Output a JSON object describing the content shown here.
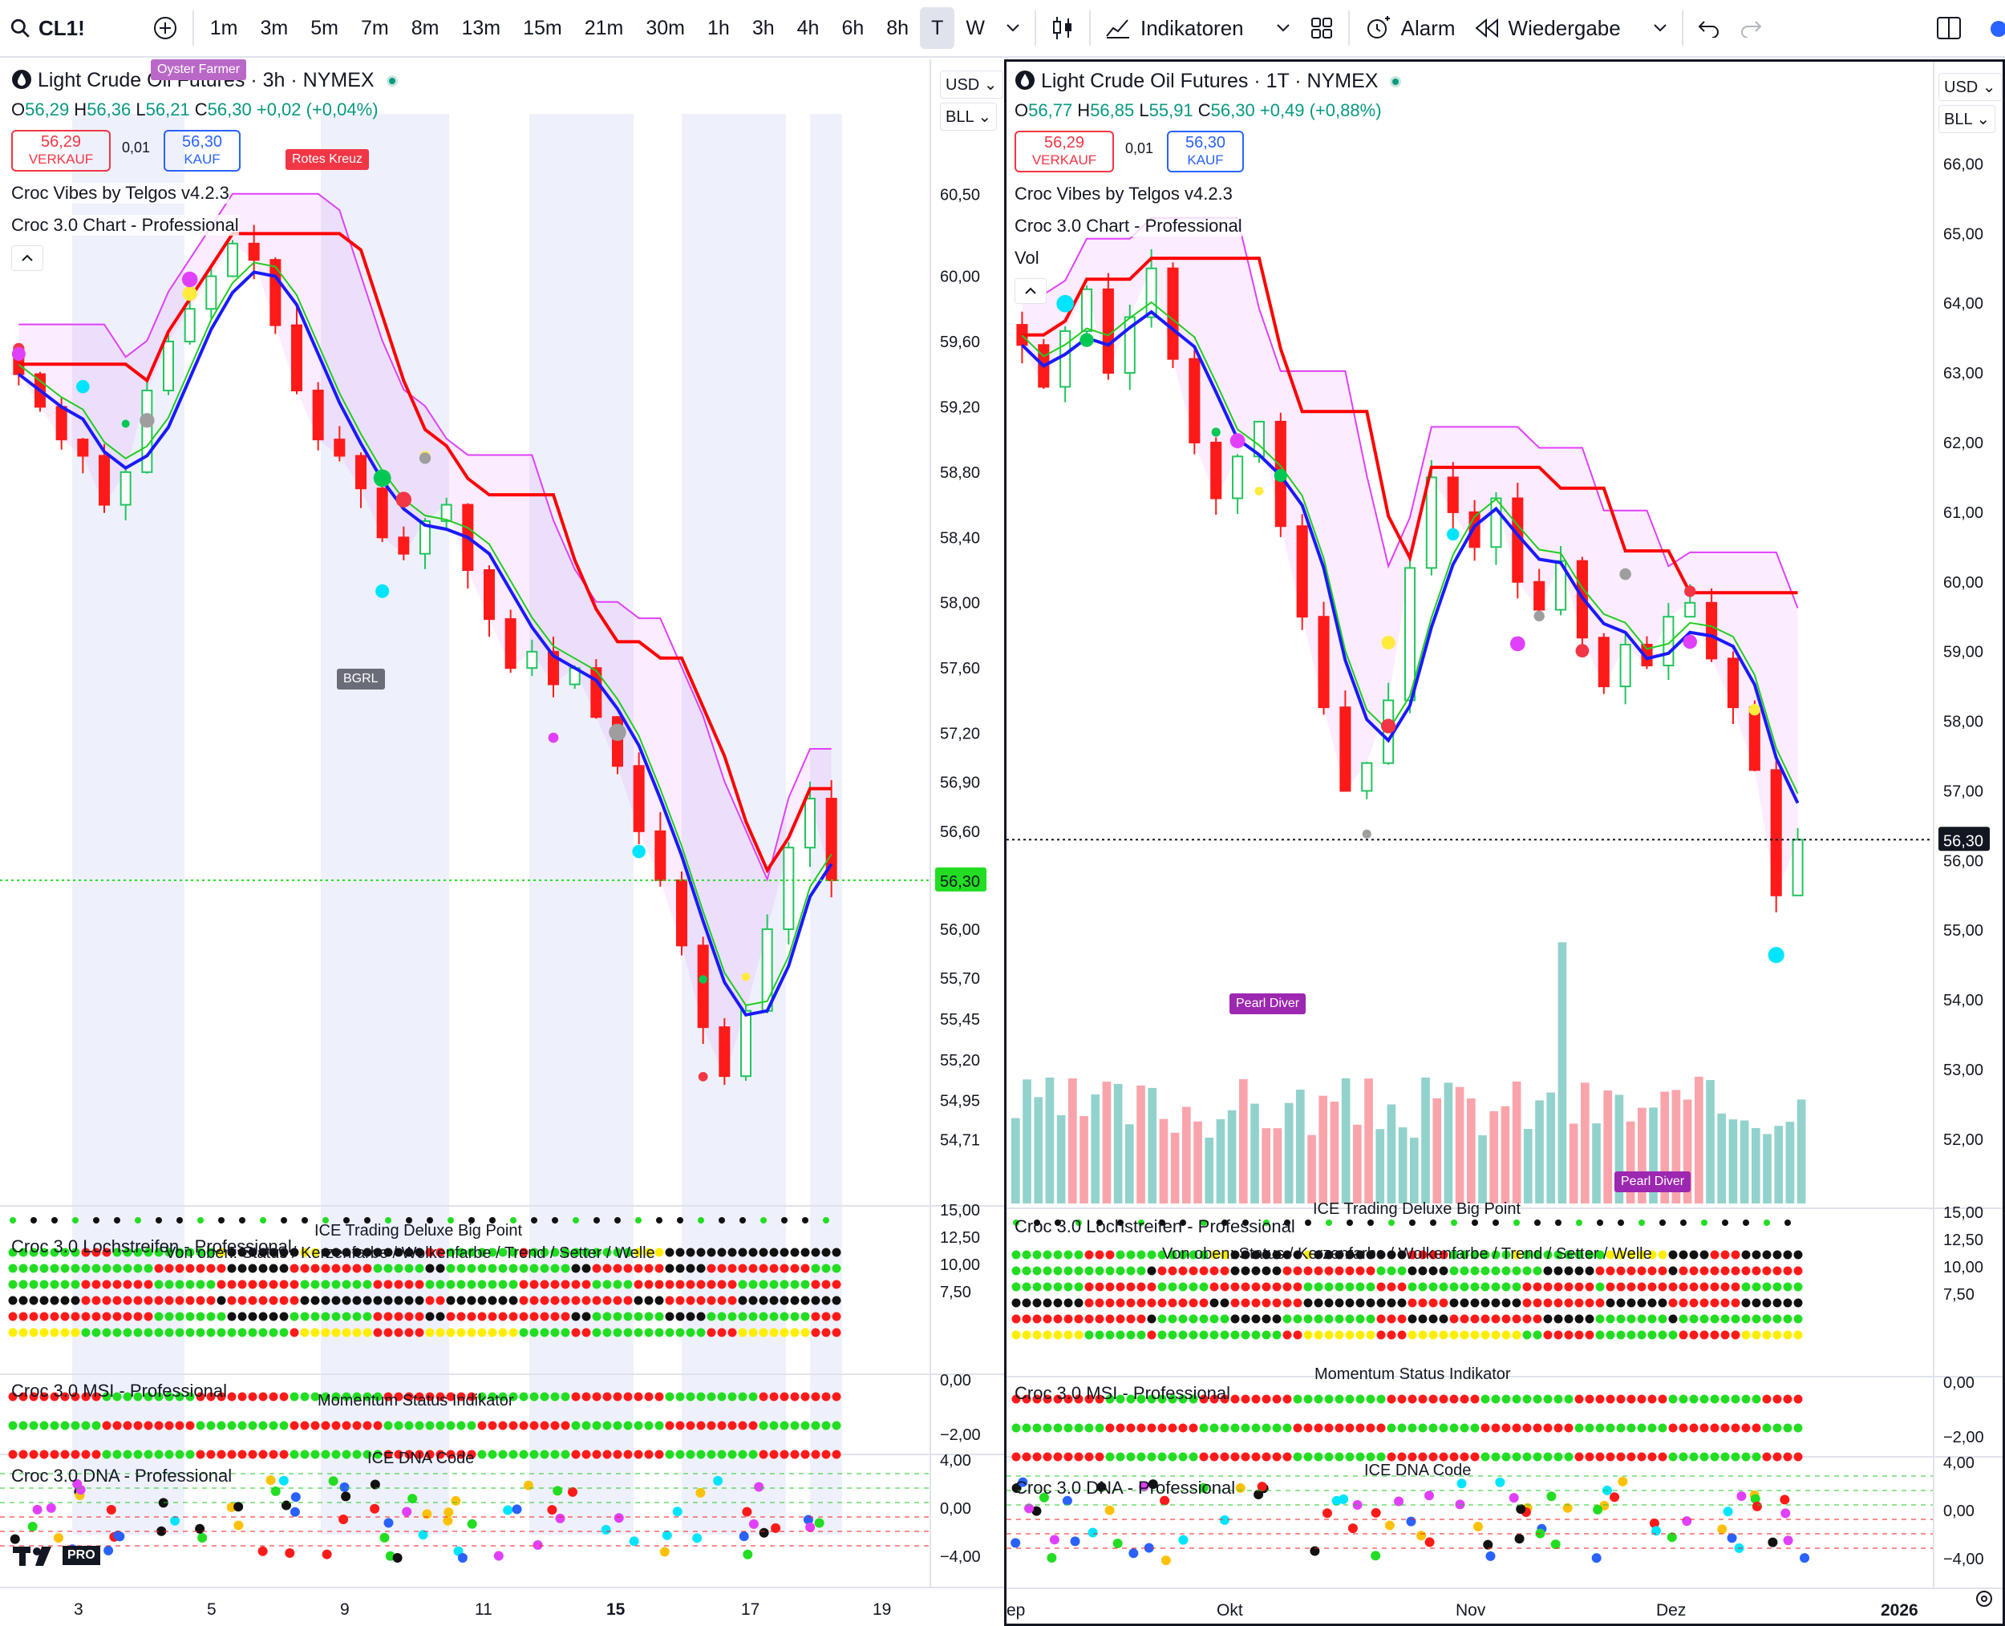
{
  "toolbar": {
    "symbol": "CL1!",
    "timeframes": [
      "1m",
      "3m",
      "5m",
      "7m",
      "8m",
      "13m",
      "15m",
      "21m",
      "30m",
      "1h",
      "3h",
      "4h",
      "6h",
      "8h",
      "T",
      "W"
    ],
    "active_timeframe": "T",
    "indicators_label": "Indikatoren",
    "alarm_label": "Alarm",
    "replay_label": "Wiedergabe"
  },
  "left": {
    "title": "Light Crude Oil Futures · 3h · NYMEX",
    "ohlc": {
      "o": "56,29",
      "h": "56,36",
      "l": "56,21",
      "c": "56,30",
      "chg": "+0,02 (+0,04%)"
    },
    "sell_price": "56,29",
    "sell_label": "VERKAUF",
    "spread": "0,01",
    "buy_price": "56,30",
    "buy_label": "KAUF",
    "indicators": [
      "Croc Vibes by Telgos v4.2.3",
      "Croc 3.0 Chart - Professional"
    ],
    "currency": "USD",
    "unit": "BLL",
    "price_ticks": [
      "60,50",
      "60,00",
      "59,60",
      "59,20",
      "58,80",
      "58,40",
      "58,00",
      "57,60",
      "57,20",
      "56,90",
      "56,60",
      "56,30",
      "56,00",
      "55,70",
      "55,45",
      "55,20",
      "54,95",
      "54,71"
    ],
    "current_price": "56,30",
    "x_ticks": [
      "3",
      "5",
      "9",
      "11",
      "15",
      "17",
      "19"
    ],
    "tags": {
      "oyster": "Oyster Farmer",
      "rotes": "Rotes Kreuz",
      "bgrl": "BGRL"
    },
    "sub1_title": "Croc 3.0 Lochstreifen - Professional",
    "sub1_head": "ICE Trading Deluxe Big Point",
    "sub1_sub": "Von oben: Status / Kerzenfarbe / Wolkenfarbe / Trend / Setter / Welle",
    "sub1_ticks": [
      "15,00",
      "12,50",
      "10,00",
      "7,50"
    ],
    "sub2_title": "Croc 3.0 MSI - Professional",
    "sub2_head": "Momentum Status Indikator",
    "sub2_ticks": [
      "0,00",
      "−2,00"
    ],
    "sub3_title": "Croc 3.0 DNA - Professional",
    "sub3_head": "ICE DNA Code",
    "sub3_ticks": [
      "4,00",
      "0,00",
      "−4,00"
    ],
    "logo": "PRO"
  },
  "right": {
    "title": "Light Crude Oil Futures · 1T · NYMEX",
    "ohlc": {
      "o": "56,77",
      "h": "56,85",
      "l": "55,91",
      "c": "56,30",
      "chg": "+0,49 (+0,88%)"
    },
    "sell_price": "56,29",
    "sell_label": "VERKAUF",
    "spread": "0,01",
    "buy_price": "56,30",
    "buy_label": "KAUF",
    "indicators": [
      "Croc Vibes by Telgos v4.2.3",
      "Croc 3.0 Chart - Professional",
      "Vol"
    ],
    "currency": "USD",
    "unit": "BLL",
    "price_ticks": [
      "66,00",
      "65,00",
      "64,00",
      "63,00",
      "62,00",
      "61,00",
      "60,00",
      "59,00",
      "58,00",
      "57,00",
      "56,00",
      "55,00",
      "54,00",
      "53,00",
      "52,00"
    ],
    "current_price": "56,30",
    "x_ticks": [
      "ep",
      "Okt",
      "Nov",
      "Dez",
      "2026"
    ],
    "tags": {
      "pearl": "Pearl Diver"
    },
    "sub1_title": "Croc 3.0 Lochstreifen - Professional",
    "sub1_head": "ICE Trading Deluxe Big Point",
    "sub1_sub": "Von oben: Status / Kerzenfarbe / Wolkenfarbe / Trend / Setter / Welle",
    "sub1_ticks": [
      "15,00",
      "12,50",
      "10,00",
      "7,50"
    ],
    "sub2_title": "Croc 3.0 MSI - Professional",
    "sub2_head": "Momentum Status Indikator",
    "sub2_ticks": [
      "0,00",
      "−2,00"
    ],
    "sub3_title": "Croc 3.0 DNA - Professional",
    "sub3_head": "ICE DNA Code",
    "sub3_ticks": [
      "4,00",
      "0,00",
      "−4,00"
    ]
  },
  "chart_data": [
    {
      "type": "candlestick",
      "title": "Light Crude Oil Futures · 3h · NYMEX",
      "ylim": [
        54.6,
        60.7
      ],
      "close": [
        59.4,
        59.2,
        59.0,
        58.9,
        58.6,
        58.8,
        59.3,
        59.6,
        59.8,
        60.0,
        60.2,
        60.1,
        59.7,
        59.3,
        59.0,
        58.9,
        58.7,
        58.4,
        58.3,
        58.5,
        58.6,
        58.2,
        57.9,
        57.6,
        57.7,
        57.5,
        57.6,
        57.3,
        57.0,
        56.6,
        56.3,
        55.9,
        55.4,
        55.1,
        55.5,
        56.0,
        56.5,
        56.8,
        56.3
      ]
    },
    {
      "type": "candlestick",
      "title": "Light Crude Oil Futures · 1T · NYMEX",
      "ylim": [
        51.7,
        66.2
      ],
      "close": [
        63.4,
        62.8,
        63.6,
        64.2,
        63.0,
        63.8,
        64.5,
        63.2,
        62.0,
        61.2,
        61.8,
        62.3,
        60.8,
        59.5,
        58.2,
        57.0,
        57.4,
        58.3,
        60.2,
        61.5,
        61.0,
        60.5,
        61.2,
        60.0,
        59.6,
        60.3,
        59.2,
        58.5,
        59.1,
        58.8,
        59.5,
        59.7,
        58.9,
        58.2,
        57.3,
        55.5,
        56.3
      ]
    }
  ]
}
